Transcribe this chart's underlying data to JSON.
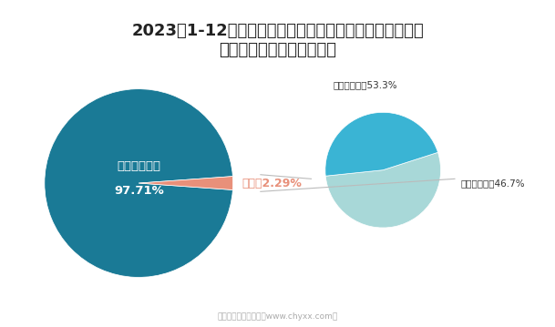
{
  "title": "2023年1-12月四川省进出口总额占全国比重及外商投资企\n业占进出口总额比重统计图",
  "left_pie": {
    "values": [
      97.71,
      2.29
    ],
    "colors": [
      "#1a7a96",
      "#e8907a"
    ],
    "label_main": "全国其他省份",
    "label_pct": "97.71%",
    "sichuan_label": "四川省2.29%",
    "sichuan_color": "#e8907a"
  },
  "right_pie": {
    "label_top": "其他企业类型53.3%",
    "label_bottom": "外商投资企业46.7%",
    "values": [
      53.3,
      46.7
    ],
    "colors": [
      "#a8d8d8",
      "#3ab4d4"
    ]
  },
  "connector_color": "#bbbbbb",
  "watermark": "制图：智研咨询整理（www.chyxx.com）",
  "title_fontsize": 13,
  "bg_color": "#ffffff"
}
